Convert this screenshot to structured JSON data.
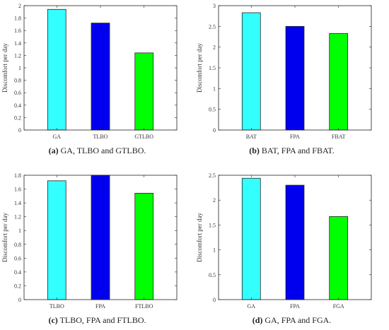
{
  "chart_data": [
    {
      "type": "bar",
      "categories": [
        "GA",
        "TLBO",
        "GTLBO"
      ],
      "values": [
        1.94,
        1.72,
        1.24
      ],
      "colors": [
        "#33ffff",
        "#0000ee",
        "#00ff00"
      ],
      "ylabel": "Discomfort per day",
      "ylim": [
        0,
        2
      ],
      "yticks": [
        0,
        0.2,
        0.4,
        0.6,
        0.8,
        1,
        1.2,
        1.4,
        1.6,
        1.8,
        2
      ],
      "ytick_labels": [
        "0",
        "0.2",
        "0.4",
        "0.6",
        "0.8",
        "1",
        "1.2",
        "1.4",
        "1.6",
        "1.8",
        "2"
      ],
      "caption_label": "(a)",
      "caption_text": "GA, TLBO and GTLBO."
    },
    {
      "type": "bar",
      "categories": [
        "BAT",
        "FPA",
        "FBAT"
      ],
      "values": [
        2.83,
        2.5,
        2.33
      ],
      "colors": [
        "#33ffff",
        "#0000ee",
        "#00ff00"
      ],
      "ylabel": "Discomfort per day",
      "ylim": [
        0,
        3
      ],
      "yticks": [
        0,
        0.5,
        1,
        1.5,
        2,
        2.5,
        3
      ],
      "ytick_labels": [
        "0",
        "0.5",
        "1",
        "1.5",
        "2",
        "2.5",
        "3"
      ],
      "caption_label": "(b)",
      "caption_text": "BAT, FPA and FBAT."
    },
    {
      "type": "bar",
      "categories": [
        "TLBO",
        "FPA",
        "FTLBO"
      ],
      "values": [
        1.72,
        1.8,
        1.54
      ],
      "colors": [
        "#33ffff",
        "#0000ee",
        "#00ff00"
      ],
      "ylabel": "Discomfort per day",
      "ylim": [
        0,
        1.8
      ],
      "yticks": [
        0,
        0.2,
        0.4,
        0.6,
        0.8,
        1,
        1.2,
        1.4,
        1.6,
        1.8
      ],
      "ytick_labels": [
        "0",
        "0.2",
        "0.4",
        "0.6",
        "0.8",
        "1",
        "1.2",
        "1.4",
        "1.6",
        "1.8"
      ],
      "caption_label": "(c)",
      "caption_text": "TLBO, FPA and FTLBO."
    },
    {
      "type": "bar",
      "categories": [
        "GA",
        "FPA",
        "FGA"
      ],
      "values": [
        2.44,
        2.3,
        1.67
      ],
      "colors": [
        "#33ffff",
        "#0000ee",
        "#00ff00"
      ],
      "ylabel": "Discomfort per day",
      "ylim": [
        0,
        2.5
      ],
      "yticks": [
        0,
        0.5,
        1,
        1.5,
        2,
        2.5
      ],
      "ytick_labels": [
        "0",
        "0.5",
        "1",
        "1.5",
        "2",
        "2.5"
      ],
      "caption_label": "(d)",
      "caption_text": "GA, FPA and FGA."
    }
  ]
}
